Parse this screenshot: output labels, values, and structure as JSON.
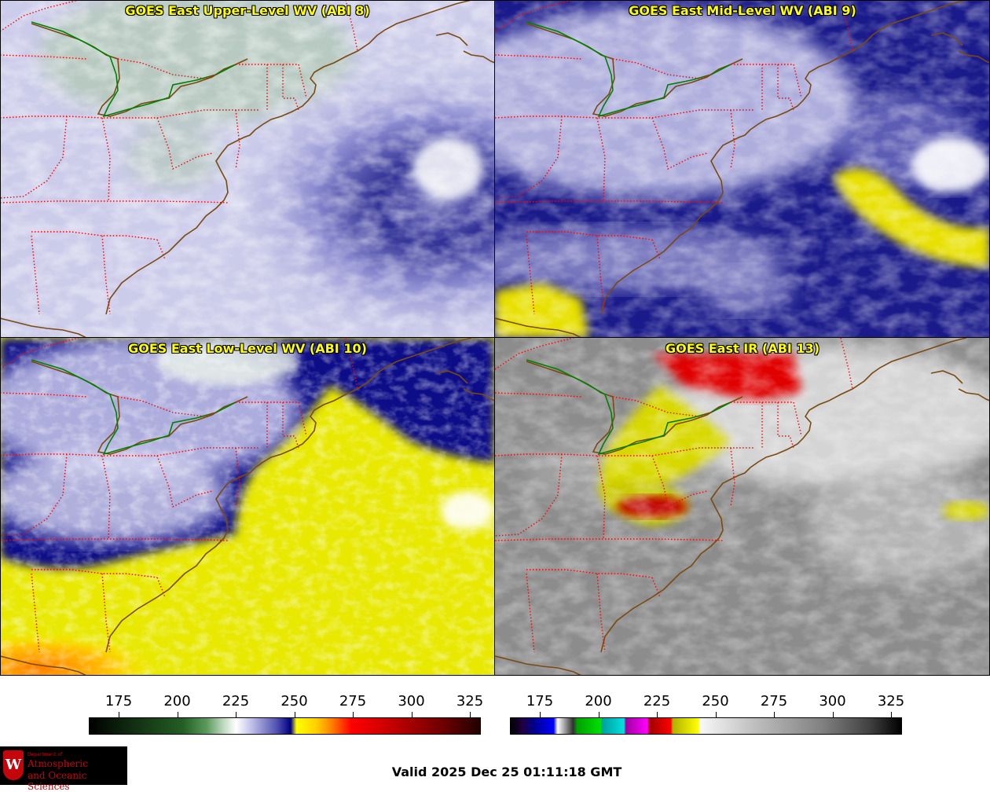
{
  "panels": [
    {
      "id": "upper",
      "title": "GOES East Upper-Level WV (ABI 8)"
    },
    {
      "id": "mid",
      "title": "GOES East Mid-Level WV (ABI 9)"
    },
    {
      "id": "low",
      "title": "GOES East Low-Level WV (ABI 10)"
    },
    {
      "id": "ir",
      "title": "GOES East IR (ABI 13)"
    }
  ],
  "colorbars": {
    "water_vapor": {
      "ticks": [
        "175",
        "200",
        "225",
        "250",
        "275",
        "300",
        "325"
      ]
    },
    "infrared": {
      "ticks": [
        "175",
        "200",
        "225",
        "250",
        "275",
        "300",
        "325"
      ]
    }
  },
  "logo": {
    "dept": "Department of",
    "line1": "Atmospheric",
    "line2": "and Oceanic Sciences",
    "emblem": "W"
  },
  "valid_time": "Valid 2025 Dec 25 01:11:18 GMT",
  "colors": {
    "title_text": "#ffff00",
    "state_borders": "#ff0000",
    "coastline": "#7a4a10",
    "intl_border": "#008000"
  }
}
